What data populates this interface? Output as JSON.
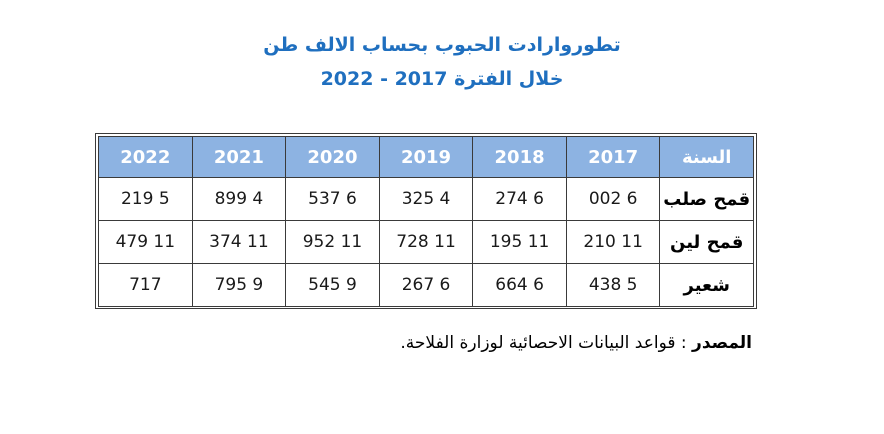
{
  "title": {
    "line1": "تطوروارادت الحبوب بحساب الالف طن",
    "line2": "خلال الفترة 2017 - 2022"
  },
  "table": {
    "header_label": "السنة",
    "years": [
      "2017",
      "2018",
      "2019",
      "2020",
      "2021",
      "2022"
    ],
    "rows": [
      {
        "label": "قمح صلب",
        "values": [
          "6 002",
          "6 274",
          "4 325",
          "6 537",
          "4 899",
          "5 219"
        ]
      },
      {
        "label": "قمح لين",
        "values": [
          "11 210",
          "11 195",
          "11 728",
          "11 952",
          "11 374",
          "11 479"
        ]
      },
      {
        "label": "شعير",
        "values": [
          "5 438",
          "6 664",
          "6 267",
          "9 545",
          "9 795",
          "717"
        ]
      }
    ]
  },
  "source": {
    "label": "المصدر",
    "text": ": قواعد البيانات الاحصائية لوزارة الفلاحة."
  },
  "colors": {
    "title": "#1f6fbf",
    "header_bg": "#8db3e2",
    "header_text": "#ffffff"
  }
}
